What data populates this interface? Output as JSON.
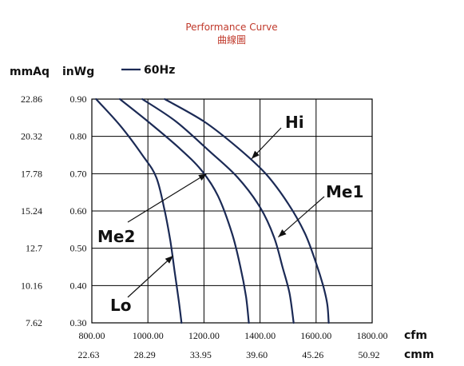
{
  "chart_data": {
    "type": "line",
    "title": "Performance Curve",
    "subtitle": "曲線圖",
    "y_units": {
      "left": "mmAq",
      "right": "inWg"
    },
    "x_units": {
      "primary": "cfm",
      "secondary": "cmm"
    },
    "legend": {
      "label": "60Hz",
      "placement": "top-left"
    },
    "xlim": [
      800,
      1800
    ],
    "ylim": [
      0.3,
      0.9
    ],
    "grid": true,
    "x_ticks": [
      800,
      1000,
      1200,
      1400,
      1600,
      1800
    ],
    "x_tick_labels": [
      "800.00",
      "1000.00",
      "1200.00",
      "1400.00",
      "1600.00",
      "1800.00"
    ],
    "x_secondary_tick_labels": [
      "22.63",
      "28.29",
      "33.95",
      "39.60",
      "45.26",
      "50.92"
    ],
    "y_ticks": [
      0.3,
      0.4,
      0.5,
      0.6,
      0.7,
      0.8,
      0.9
    ],
    "y_tick_labels": [
      "0.30",
      "0.40",
      "0.50",
      "0.60",
      "0.70",
      "0.80",
      "0.90"
    ],
    "y_secondary_tick_labels": [
      "7.62",
      "10.16",
      "12.7",
      "15.24",
      "17.78",
      "20.32",
      "22.86"
    ],
    "series": [
      {
        "name": "Hi",
        "points": [
          [
            1060,
            0.9
          ],
          [
            1200,
            0.84
          ],
          [
            1320,
            0.77
          ],
          [
            1420,
            0.7
          ],
          [
            1500,
            0.62
          ],
          [
            1560,
            0.54
          ],
          [
            1600,
            0.46
          ],
          [
            1625,
            0.4
          ],
          [
            1640,
            0.35
          ],
          [
            1645,
            0.3
          ]
        ]
      },
      {
        "name": "Me1",
        "points": [
          [
            980,
            0.9
          ],
          [
            1100,
            0.84
          ],
          [
            1220,
            0.76
          ],
          [
            1320,
            0.69
          ],
          [
            1400,
            0.61
          ],
          [
            1450,
            0.53
          ],
          [
            1480,
            0.45
          ],
          [
            1505,
            0.38
          ],
          [
            1520,
            0.3
          ]
        ]
      },
      {
        "name": "Me2",
        "points": [
          [
            900,
            0.9
          ],
          [
            1000,
            0.84
          ],
          [
            1110,
            0.77
          ],
          [
            1190,
            0.71
          ],
          [
            1250,
            0.64
          ],
          [
            1300,
            0.54
          ],
          [
            1330,
            0.45
          ],
          [
            1350,
            0.37
          ],
          [
            1360,
            0.3
          ]
        ]
      },
      {
        "name": "Lo",
        "points": [
          [
            815,
            0.9
          ],
          [
            900,
            0.83
          ],
          [
            980,
            0.75
          ],
          [
            1030,
            0.69
          ],
          [
            1060,
            0.6
          ],
          [
            1080,
            0.52
          ],
          [
            1095,
            0.44
          ],
          [
            1110,
            0.36
          ],
          [
            1120,
            0.3
          ]
        ]
      }
    ],
    "annotations": [
      {
        "label": "Hi",
        "target": [
          1370,
          0.74
        ]
      },
      {
        "label": "Me1",
        "target": [
          1465,
          0.53
        ]
      },
      {
        "label": "Me2",
        "target": [
          1210,
          0.7
        ]
      },
      {
        "label": "Lo",
        "target": [
          1090,
          0.48
        ]
      }
    ]
  }
}
